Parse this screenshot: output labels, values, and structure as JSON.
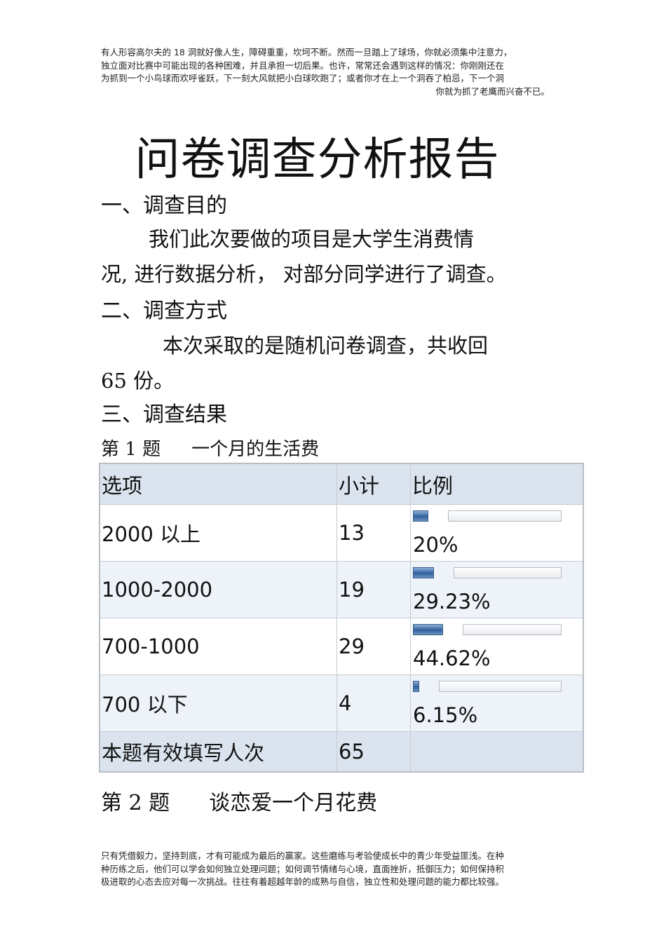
{
  "header_note": {
    "lines": [
      "有人形容高尔夫的    18 洞就好像人生，障碍重重，坎坷不断。然而一旦踏上了球场，你就必须集中注意力，",
      "独立面对比赛中可能出现的各种困难，并且承担一切后果。也许，常常还会遇到这样的情况：你刚刚还在",
      "为抓到一个小鸟球而欢呼雀跃，下一刻大风就把小白球吹跑了；或者你才在上一个洞吞了柏忌，下一个洞",
      "你就为抓了老鹰而兴奋不已。"
    ]
  },
  "title": "问卷调查分析报告",
  "sections": {
    "purpose_heading": "一、调查目的",
    "purpose_line1": "我们此次要做的项目是大学生消费情",
    "purpose_line2": "况, 进行数据分析，  对部分同学进行了调查。",
    "method_heading": "二、调查方式",
    "method_line1": "本次采取的是随机问卷调查，共收回",
    "method_line2": "65 份。",
    "result_heading": "三、调查结果"
  },
  "question1": {
    "number": "第 1 题",
    "text": "一个月的生活费",
    "headers": [
      "选项",
      "小计",
      "比例"
    ],
    "rows": [
      {
        "option": "2000  以上",
        "count": "13",
        "percent": "20%",
        "ratio": 0.2
      },
      {
        "option": "1000-2000",
        "count": "19",
        "percent": "29.23%",
        "ratio": 0.2923
      },
      {
        "option": "700-1000",
        "count": "29",
        "percent": "44.62%",
        "ratio": 0.4462
      },
      {
        "option": "700  以下",
        "count": "4",
        "percent": "6.15%",
        "ratio": 0.0615
      }
    ],
    "total_label": "本题有效填写人次",
    "total_value": "65"
  },
  "question2": {
    "number": "第 2 题",
    "text": "谈恋爱一个月花费"
  },
  "footer_note": {
    "lines": [
      "只有凭借毅力，坚持到底，才有可能成为最后的赢家。这些磨练与考验使成长中的青少年受益匪浅。在种",
      "种历练之后，他们可以学会如何独立处理问题；如何调节情绪与心境，直面挫折，抵御压力；如何保持积",
      "极进取的心态去应对每一次挑战。往往有着超越年龄的成熟与自信，独立性和处理问题的能力都比较强。"
    ]
  },
  "colors": {
    "header_bg": "#dbe4ee",
    "alt_row_bg": "#edf3f9",
    "bar_fill": "#2f5f9c"
  }
}
